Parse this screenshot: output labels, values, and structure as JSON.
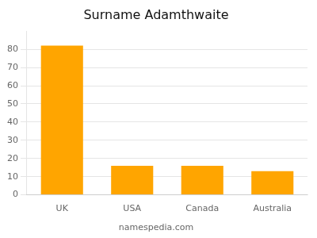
{
  "chart_data": {
    "type": "bar",
    "title": "Surname Adamthwaite",
    "categories": [
      "UK",
      "USA",
      "Canada",
      "Australia"
    ],
    "values": [
      82,
      16,
      16,
      13
    ],
    "color": "#FFA500",
    "ylim": [
      0,
      90
    ],
    "yticks": [
      0,
      10,
      20,
      30,
      40,
      50,
      60,
      70,
      80
    ],
    "grid": true,
    "annotations": [
      "namespedia.com"
    ]
  }
}
